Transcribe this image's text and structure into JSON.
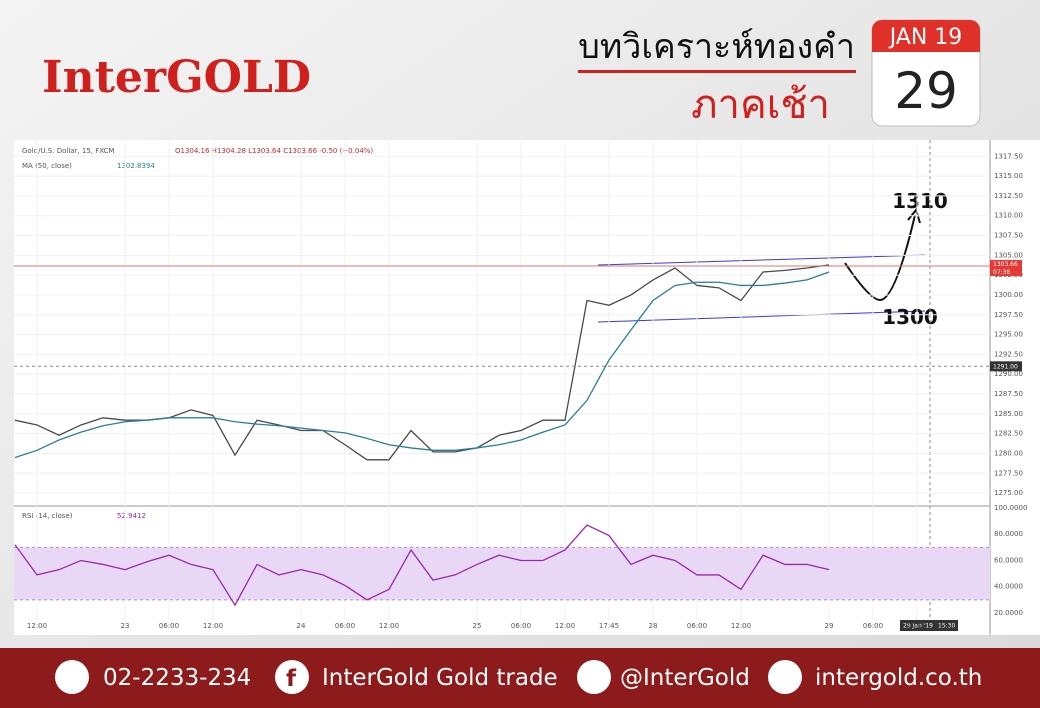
{
  "header": {
    "brand": "InterGOLD",
    "title": "บทวิเคราะห์ทองคำ",
    "subtitle": "ภาคเช้า",
    "calendar_month": "JAN 19",
    "calendar_day": "29"
  },
  "chart_data": [
    {
      "type": "line",
      "symbol": "Gold/U.S. Dollar, 15, FXCM",
      "ohlc": "O1304.16 H1304.28 L1303.64 C1303.66 -0.50 (−0.04%)",
      "ma_last": 1302.8394,
      "categories": [
        null,
        "12:00",
        null,
        null,
        null,
        "23",
        null,
        "06:00",
        null,
        "12:00",
        null,
        null,
        null,
        "24",
        null,
        "06:00",
        null,
        "12:00",
        null,
        null,
        null,
        "25",
        null,
        "06:00",
        null,
        "12:00",
        null,
        "17:45",
        null,
        "28",
        null,
        "06:00",
        null,
        "12:00",
        null,
        null,
        null,
        "29",
        null,
        "06:00",
        null,
        "12:00",
        null
      ],
      "series": [
        {
          "name": "Gold/U.S. Dollar",
          "color": "#4a4a4a",
          "values": [
            1284.2,
            1283.6,
            1282.3,
            1283.6,
            1284.5,
            1284.2,
            1284.2,
            1284.5,
            1285.5,
            1284.8,
            1279.8,
            1284.2,
            1283.6,
            1282.9,
            1282.9,
            1281.1,
            1279.2,
            1279.2,
            1282.9,
            1280.2,
            1280.2,
            1280.7,
            1282.3,
            1282.9,
            1284.2,
            1284.2,
            1299.3,
            1298.7,
            1300.0,
            1301.9,
            1303.4,
            1301.2,
            1300.9,
            1299.3,
            1302.9,
            1303.1,
            1303.4,
            1303.8,
            null,
            null,
            null,
            null,
            null
          ]
        },
        {
          "name": "MA (50, close)",
          "color": "#2a7f98",
          "values": [
            1279.5,
            1280.4,
            1281.7,
            1282.7,
            1283.5,
            1284.0,
            1284.2,
            1284.5,
            1284.5,
            1284.5,
            1284.0,
            1283.7,
            1283.5,
            1283.2,
            1282.9,
            1282.6,
            1281.9,
            1281.1,
            1280.7,
            1280.4,
            1280.4,
            1280.7,
            1281.1,
            1281.7,
            1282.7,
            1283.6,
            1286.7,
            1291.8,
            1295.6,
            1299.3,
            1301.2,
            1301.6,
            1301.6,
            1301.2,
            1301.2,
            1301.5,
            1301.9,
            1302.9,
            null,
            null,
            null,
            null,
            null
          ]
        }
      ],
      "ylim": [
        1273.5,
        1319.3
      ],
      "yticks": [
        {
          "value": 1275,
          "label": "1275.00"
        },
        {
          "value": 1277.5,
          "label": "1277.50"
        },
        {
          "value": 1280,
          "label": "1280.00"
        },
        {
          "value": 1282.5,
          "label": "1282.50"
        },
        {
          "value": 1285,
          "label": "1285.00"
        },
        {
          "value": 1287.5,
          "label": "1287.50"
        },
        {
          "value": 1290,
          "label": "1290.00"
        },
        {
          "value": 1292.5,
          "label": "1292.50"
        },
        {
          "value": 1295,
          "label": "1295.00"
        },
        {
          "value": 1297.5,
          "label": "1297.50"
        },
        {
          "value": 1300,
          "label": "1300.00"
        },
        {
          "value": 1302.5,
          "label": "1302.50"
        },
        {
          "value": 1305,
          "label": "1305.00"
        },
        {
          "value": 1307.5,
          "label": "1307.50"
        },
        {
          "value": 1310,
          "label": "1310.00"
        },
        {
          "value": 1312.5,
          "label": "1312.50"
        },
        {
          "value": 1315,
          "label": "1315.00"
        },
        {
          "value": 1317.5,
          "label": "1317.50"
        }
      ],
      "grid": true,
      "last_price": 1303.66,
      "countdown": "07:36",
      "crosshair_price": {
        "value": 1291,
        "label": "1291.00"
      },
      "annotations": [
        "1310",
        "1300"
      ],
      "crosshair_time": "29 Jan '19",
      "crosshair_clock": "15:30"
    },
    {
      "type": "line",
      "series": [
        {
          "name": "RSI (14, close)",
          "color": "#9c27b0",
          "values": [
            72,
            49,
            53,
            60,
            57,
            53,
            59,
            64,
            57,
            53,
            26,
            57,
            49,
            53,
            49,
            41,
            30,
            38,
            68,
            45,
            49,
            57,
            64,
            60,
            60,
            68,
            87,
            79,
            57,
            64,
            60,
            49,
            49,
            38,
            64,
            57,
            57,
            53,
            null,
            null,
            null,
            null,
            null
          ]
        }
      ],
      "rsi_last": 52.9412,
      "band": [
        30,
        70
      ],
      "ylim": [
        5.5,
        100
      ],
      "yticks": [
        {
          "value": 20,
          "label": "20.0000"
        },
        {
          "value": 40,
          "label": "40.0000"
        },
        {
          "value": 60,
          "label": "60.0000"
        },
        {
          "value": 80,
          "label": "80.0000"
        },
        {
          "value": 100,
          "label": "100.0000"
        }
      ]
    }
  ],
  "footer": {
    "phone": "02-2233-234",
    "facebook": "InterGold Gold trade",
    "line": "@InterGold",
    "website": "intergold.co.th"
  }
}
